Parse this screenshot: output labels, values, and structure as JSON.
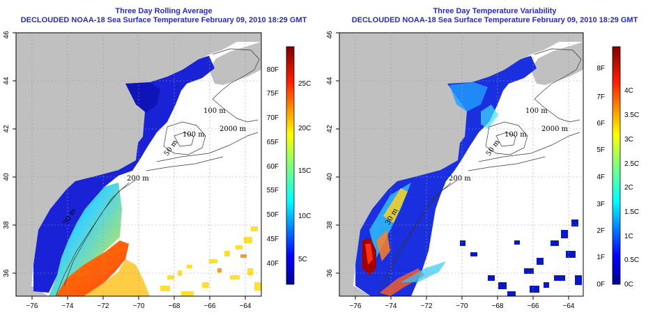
{
  "panels": [
    {
      "title": "Three Day Rolling Average",
      "subtitle": "DECLOUDED NOAA-18 Sea Surface Temperature February 09, 2010 18:29 GMT",
      "colorbar_f": [
        "80F",
        "75F",
        "70F",
        "65F",
        "60F",
        "55F",
        "50F",
        "45F",
        "40F"
      ],
      "colorbar_c": [
        "25C",
        "20C",
        "15C",
        "10C",
        "5C"
      ]
    },
    {
      "title": "Three Day Temperature Variability",
      "subtitle": "DECLOUDED NOAA-18 Sea Surface Temperature February 09, 2010 18:29 GMT",
      "colorbar_f": [
        "8F",
        "7F",
        "6F",
        "5F",
        "4F",
        "3F",
        "2F",
        "1F",
        "0F"
      ],
      "colorbar_c": [
        "4C",
        "3.5C",
        "3C",
        "2.5C",
        "2C",
        "1.5C",
        "1C",
        "0.5C",
        "0C"
      ]
    }
  ],
  "lon_labels": [
    "−76",
    "−74",
    "−72",
    "−70",
    "−68",
    "−66",
    "−64"
  ],
  "lat_labels": [
    "36",
    "38",
    "40",
    "42",
    "44",
    "46"
  ],
  "contour_labels": {
    "m100a": "100 m",
    "m100b": "100 m",
    "m2000": "2000 m",
    "m50": "50 m",
    "m200": "200 m",
    "m30": "30 m"
  },
  "colors": {
    "land": "#c0c0c0",
    "water_nodata": "#ffffff",
    "title": "#2a2ab8",
    "cold": "#1a1ad0",
    "warm": "#ff5a10"
  }
}
